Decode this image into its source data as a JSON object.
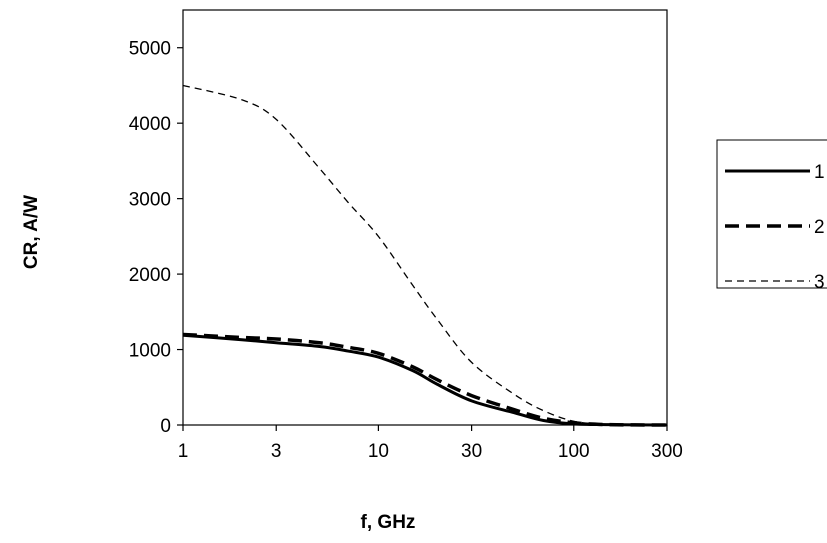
{
  "chart_data": {
    "type": "line",
    "title": "",
    "xlabel": "f, GHz",
    "ylabel": "CR, A/W",
    "x_scale": "log",
    "xlim": [
      1,
      300
    ],
    "ylim": [
      0,
      5500
    ],
    "x_ticks": [
      1,
      3,
      10,
      30,
      100,
      300
    ],
    "x_tick_labels": [
      "1",
      "3",
      "10",
      "30",
      "100",
      "300"
    ],
    "y_ticks": [
      0,
      1000,
      2000,
      3000,
      4000,
      5000
    ],
    "y_tick_labels": [
      "0",
      "1000",
      "2000",
      "3000",
      "4000",
      "5000"
    ],
    "grid": false,
    "legend_position": "right",
    "series": [
      {
        "name": "1",
        "style": "solid-thick",
        "x": [
          1,
          2,
          3,
          5,
          7,
          10,
          15,
          20,
          30,
          50,
          70,
          100,
          150,
          300
        ],
        "y": [
          1190,
          1130,
          1090,
          1040,
          980,
          900,
          720,
          540,
          320,
          160,
          60,
          15,
          5,
          0
        ]
      },
      {
        "name": "2",
        "style": "dashed-thick",
        "x": [
          1,
          2,
          3,
          5,
          7,
          10,
          15,
          20,
          30,
          50,
          70,
          100,
          150,
          300
        ],
        "y": [
          1200,
          1160,
          1140,
          1090,
          1030,
          950,
          770,
          600,
          390,
          200,
          90,
          30,
          5,
          0
        ]
      },
      {
        "name": "3",
        "style": "dashed-thin",
        "x": [
          1,
          2,
          3,
          5,
          7,
          10,
          15,
          20,
          30,
          50,
          70,
          100,
          150,
          300
        ],
        "y": [
          4500,
          4310,
          4050,
          3400,
          2950,
          2500,
          1850,
          1400,
          830,
          400,
          190,
          50,
          10,
          0
        ]
      }
    ]
  },
  "colors": {
    "line": "#000000",
    "background": "#ffffff"
  }
}
